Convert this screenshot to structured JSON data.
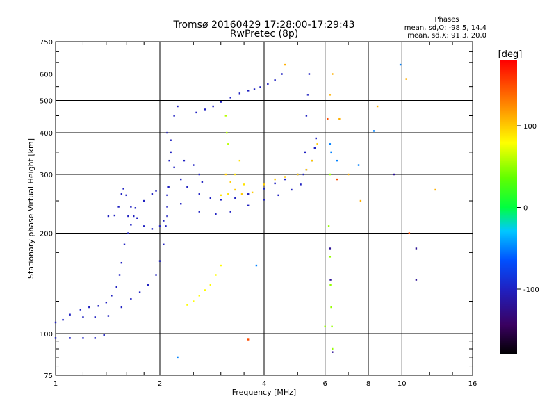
{
  "chart_data": {
    "type": "scatter",
    "title": "Tromsø 20160429 17:28:00-17:29:43",
    "subtitle": "RwPretec (8p)",
    "xlabel": "Frequency [MHz]",
    "ylabel": "Stationary phase Virtual Height [km]",
    "x_scale": "log",
    "y_scale": "log",
    "xlim": [
      1,
      16
    ],
    "ylim": [
      75,
      750
    ],
    "x_ticks": [
      1,
      2,
      4,
      6,
      8,
      10,
      16
    ],
    "x_tick_labels": [
      "1",
      "2",
      "4",
      "6",
      "8",
      "10",
      "16"
    ],
    "y_ticks": [
      75,
      100,
      200,
      300,
      400,
      500,
      600,
      750
    ],
    "y_tick_labels": [
      "75",
      "100",
      "200",
      "300",
      "400",
      "500",
      "600",
      "750"
    ],
    "grid": true,
    "phase_stats": {
      "title": "Phases",
      "line_o": "mean, sd,O: -98.5, 14.4",
      "line_x": "mean, sd,X:  91.3, 20.0"
    },
    "colorbar": {
      "label": "[deg]",
      "ticks": [
        100,
        0,
        -100
      ],
      "tick_labels": [
        "100",
        "0",
        "-100"
      ],
      "range": [
        -180,
        180
      ]
    },
    "series": [
      {
        "points": [
          [
            1.0,
            97
          ],
          [
            1.1,
            97
          ],
          [
            1.2,
            97
          ],
          [
            1.3,
            97
          ],
          [
            1.38,
            99
          ]
        ],
        "phase": -100
      },
      {
        "points": [
          [
            1.0,
            108
          ],
          [
            1.05,
            110
          ],
          [
            1.1,
            114
          ],
          [
            1.18,
            118
          ],
          [
            1.25,
            120
          ],
          [
            1.33,
            121
          ],
          [
            1.4,
            124
          ],
          [
            1.45,
            130
          ],
          [
            1.5,
            138
          ],
          [
            1.53,
            150
          ],
          [
            1.55,
            163
          ],
          [
            1.58,
            185
          ],
          [
            1.62,
            200
          ],
          [
            1.65,
            212
          ],
          [
            1.68,
            225
          ]
        ],
        "phase": -100
      },
      {
        "points": [
          [
            1.42,
            225
          ],
          [
            1.48,
            226
          ],
          [
            1.52,
            240
          ],
          [
            1.55,
            262
          ],
          [
            1.57,
            272
          ],
          [
            1.6,
            260
          ],
          [
            1.65,
            240
          ],
          [
            1.72,
            222
          ],
          [
            1.8,
            210
          ],
          [
            1.9,
            206
          ],
          [
            2.0,
            210
          ],
          [
            2.05,
            218
          ],
          [
            2.1,
            225
          ]
        ],
        "phase": -100
      },
      {
        "points": [
          [
            1.62,
            225
          ],
          [
            1.7,
            238
          ],
          [
            1.8,
            250
          ],
          [
            1.9,
            262
          ],
          [
            1.95,
            268
          ]
        ],
        "phase": -100
      },
      {
        "points": [
          [
            1.2,
            112
          ],
          [
            1.3,
            112
          ],
          [
            1.42,
            113
          ],
          [
            1.55,
            120
          ],
          [
            1.65,
            127
          ],
          [
            1.75,
            133
          ],
          [
            1.85,
            140
          ],
          [
            1.95,
            150
          ],
          [
            2.0,
            165
          ],
          [
            2.05,
            185
          ],
          [
            2.08,
            210
          ],
          [
            2.1,
            240
          ],
          [
            2.12,
            275
          ],
          [
            2.13,
            330
          ],
          [
            2.15,
            380
          ],
          [
            2.2,
            450
          ],
          [
            2.25,
            480
          ]
        ],
        "phase": -100
      },
      {
        "points": [
          [
            2.1,
            400
          ],
          [
            2.15,
            350
          ],
          [
            2.2,
            315
          ],
          [
            2.3,
            290
          ],
          [
            2.4,
            275
          ],
          [
            2.6,
            262
          ],
          [
            2.8,
            255
          ],
          [
            3.0,
            252
          ],
          [
            3.3,
            255
          ],
          [
            3.6,
            262
          ],
          [
            4.0,
            272
          ],
          [
            4.3,
            282
          ],
          [
            4.6,
            290
          ],
          [
            5.0,
            300
          ],
          [
            5.3,
            310
          ],
          [
            5.5,
            330
          ],
          [
            5.6,
            360
          ],
          [
            5.65,
            385
          ]
        ],
        "phase": -100
      },
      {
        "points": [
          [
            2.1,
            260
          ],
          [
            2.3,
            245
          ],
          [
            2.6,
            232
          ],
          [
            2.9,
            228
          ],
          [
            3.2,
            232
          ],
          [
            3.6,
            242
          ],
          [
            4.0,
            252
          ],
          [
            4.4,
            260
          ],
          [
            4.8,
            270
          ],
          [
            5.1,
            280
          ],
          [
            5.2,
            300
          ],
          [
            5.25,
            350
          ],
          [
            5.3,
            450
          ],
          [
            5.35,
            520
          ],
          [
            5.4,
            600
          ]
        ],
        "phase": -100
      },
      {
        "points": [
          [
            2.55,
            460
          ],
          [
            2.7,
            470
          ],
          [
            2.85,
            480
          ],
          [
            3.0,
            495
          ],
          [
            3.2,
            510
          ],
          [
            3.4,
            525
          ],
          [
            3.6,
            535
          ],
          [
            3.75,
            540
          ],
          [
            3.9,
            548
          ],
          [
            4.1,
            560
          ],
          [
            4.3,
            575
          ],
          [
            4.5,
            600
          ]
        ],
        "phase": -100
      },
      {
        "points": [
          [
            2.35,
            330
          ],
          [
            2.5,
            320
          ],
          [
            2.6,
            300
          ],
          [
            2.65,
            285
          ]
        ],
        "phase": -100
      },
      {
        "points": [
          [
            3.1,
            300
          ],
          [
            3.2,
            285
          ],
          [
            3.3,
            270
          ],
          [
            3.45,
            262
          ],
          [
            3.7,
            265
          ],
          [
            4.0,
            280
          ],
          [
            4.3,
            290
          ],
          [
            4.6,
            295
          ],
          [
            5.0,
            300
          ],
          [
            5.3,
            310
          ],
          [
            5.5,
            330
          ],
          [
            5.7,
            370
          ]
        ],
        "phase": 100
      },
      {
        "points": [
          [
            3.0,
            260
          ],
          [
            3.15,
            262
          ],
          [
            3.3,
            300
          ],
          [
            3.4,
            330
          ],
          [
            3.5,
            280
          ]
        ],
        "phase": 90
      },
      {
        "points": [
          [
            2.4,
            122
          ],
          [
            2.5,
            125
          ],
          [
            2.6,
            130
          ],
          [
            2.7,
            135
          ],
          [
            2.8,
            140
          ],
          [
            2.9,
            150
          ],
          [
            3.0,
            160
          ]
        ],
        "phase": 80
      },
      {
        "points": [
          [
            3.1,
            450
          ],
          [
            3.12,
            400
          ],
          [
            3.15,
            370
          ]
        ],
        "phase": 60
      },
      {
        "points": [
          [
            6.2,
            520
          ],
          [
            6.3,
            600
          ],
          [
            6.6,
            440
          ],
          [
            7.0,
            300
          ],
          [
            7.6,
            250
          ],
          [
            8.5,
            480
          ],
          [
            10.3,
            580
          ],
          [
            12.5,
            270
          ],
          [
            4.6,
            640
          ]
        ],
        "phase": 110
      },
      {
        "points": [
          [
            6.15,
            210
          ],
          [
            6.2,
            170
          ],
          [
            6.22,
            140
          ],
          [
            6.25,
            120
          ],
          [
            6.28,
            105
          ],
          [
            6.3,
            90
          ],
          [
            6.0,
            105
          ],
          [
            6.2,
            300
          ]
        ],
        "phase": 50
      },
      {
        "points": [
          [
            6.2,
            180
          ],
          [
            6.22,
            145
          ],
          [
            6.3,
            88
          ],
          [
            11.0,
            180
          ],
          [
            11.0,
            145
          ],
          [
            9.5,
            300
          ]
        ],
        "phase": -120
      },
      {
        "points": [
          [
            6.25,
            350
          ],
          [
            6.5,
            330
          ],
          [
            7.5,
            320
          ],
          [
            2.25,
            85
          ],
          [
            3.8,
            160
          ],
          [
            8.3,
            405
          ],
          [
            9.9,
            640
          ],
          [
            6.2,
            370
          ]
        ],
        "phase": -50
      },
      {
        "points": [
          [
            6.5,
            290
          ],
          [
            10.5,
            200
          ],
          [
            6.1,
            440
          ],
          [
            3.6,
            96
          ]
        ],
        "phase": 150
      }
    ]
  }
}
